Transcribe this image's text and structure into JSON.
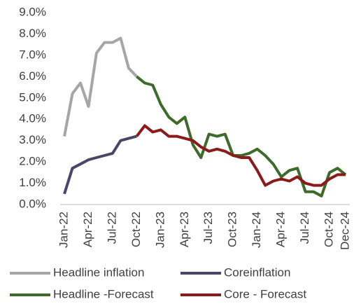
{
  "chart_data": {
    "type": "line",
    "categories": [
      "Jan-22",
      null,
      null,
      "Apr-22",
      null,
      null,
      "Jul-22",
      null,
      null,
      "Oct-22",
      null,
      null,
      "Jan-23",
      null,
      null,
      "Apr-23",
      null,
      null,
      "Jul-23",
      null,
      null,
      "Oct-23",
      null,
      null,
      "Jan-24",
      null,
      null,
      "Apr-24",
      null,
      null,
      "Jul-24",
      null,
      null,
      "Oct-24",
      null,
      "Dec-24"
    ],
    "series": [
      {
        "name": "Headline inflation",
        "color": "#a6a6a6",
        "values": [
          3.2,
          5.2,
          5.7,
          4.6,
          7.1,
          7.6,
          7.6,
          7.8,
          6.4,
          6.0,
          null,
          null,
          null,
          null,
          null,
          null,
          null,
          null,
          null,
          null,
          null,
          null,
          null,
          null,
          null,
          null,
          null,
          null,
          null,
          null,
          null,
          null,
          null,
          null,
          null,
          null
        ]
      },
      {
        "name": "Coreinflation",
        "color": "#4a4668",
        "values": [
          0.5,
          1.7,
          1.9,
          2.1,
          2.2,
          2.3,
          2.4,
          3.0,
          3.1,
          3.2,
          null,
          null,
          null,
          null,
          null,
          null,
          null,
          null,
          null,
          null,
          null,
          null,
          null,
          null,
          null,
          null,
          null,
          null,
          null,
          null,
          null,
          null,
          null,
          null,
          null,
          null
        ]
      },
      {
        "name": "Headline -Forecast",
        "color": "#3d6b2a",
        "values": [
          null,
          null,
          null,
          null,
          null,
          null,
          null,
          null,
          null,
          6.0,
          5.7,
          5.6,
          4.7,
          4.1,
          3.8,
          4.1,
          2.8,
          2.2,
          3.3,
          3.2,
          3.3,
          2.3,
          2.3,
          2.4,
          2.6,
          2.3,
          1.9,
          1.3,
          1.6,
          1.7,
          0.6,
          0.6,
          0.4,
          1.5,
          1.7,
          1.4
        ]
      },
      {
        "name": "Core - Forecast",
        "color": "#8b1a1a",
        "values": [
          null,
          null,
          null,
          null,
          null,
          null,
          null,
          null,
          null,
          3.2,
          3.7,
          3.4,
          3.5,
          3.2,
          3.2,
          3.1,
          3.0,
          2.7,
          2.5,
          2.6,
          2.5,
          2.3,
          2.2,
          2.2,
          1.6,
          0.9,
          1.1,
          1.2,
          1.1,
          1.3,
          1.0,
          0.9,
          0.9,
          1.2,
          1.4,
          1.4
        ]
      }
    ],
    "ylim": [
      0,
      9
    ],
    "yticks": [
      {
        "value": 0,
        "label": "0.0%"
      },
      {
        "value": 1,
        "label": "1.0%"
      },
      {
        "value": 2,
        "label": "2.0%"
      },
      {
        "value": 3,
        "label": "3.0%"
      },
      {
        "value": 4,
        "label": "4.0%"
      },
      {
        "value": 5,
        "label": "5.0%"
      },
      {
        "value": 6,
        "label": "6.0%"
      },
      {
        "value": 7,
        "label": "7.0%"
      },
      {
        "value": 8,
        "label": "8.0%"
      },
      {
        "value": 9,
        "label": "9.0%"
      }
    ],
    "grid": false
  }
}
